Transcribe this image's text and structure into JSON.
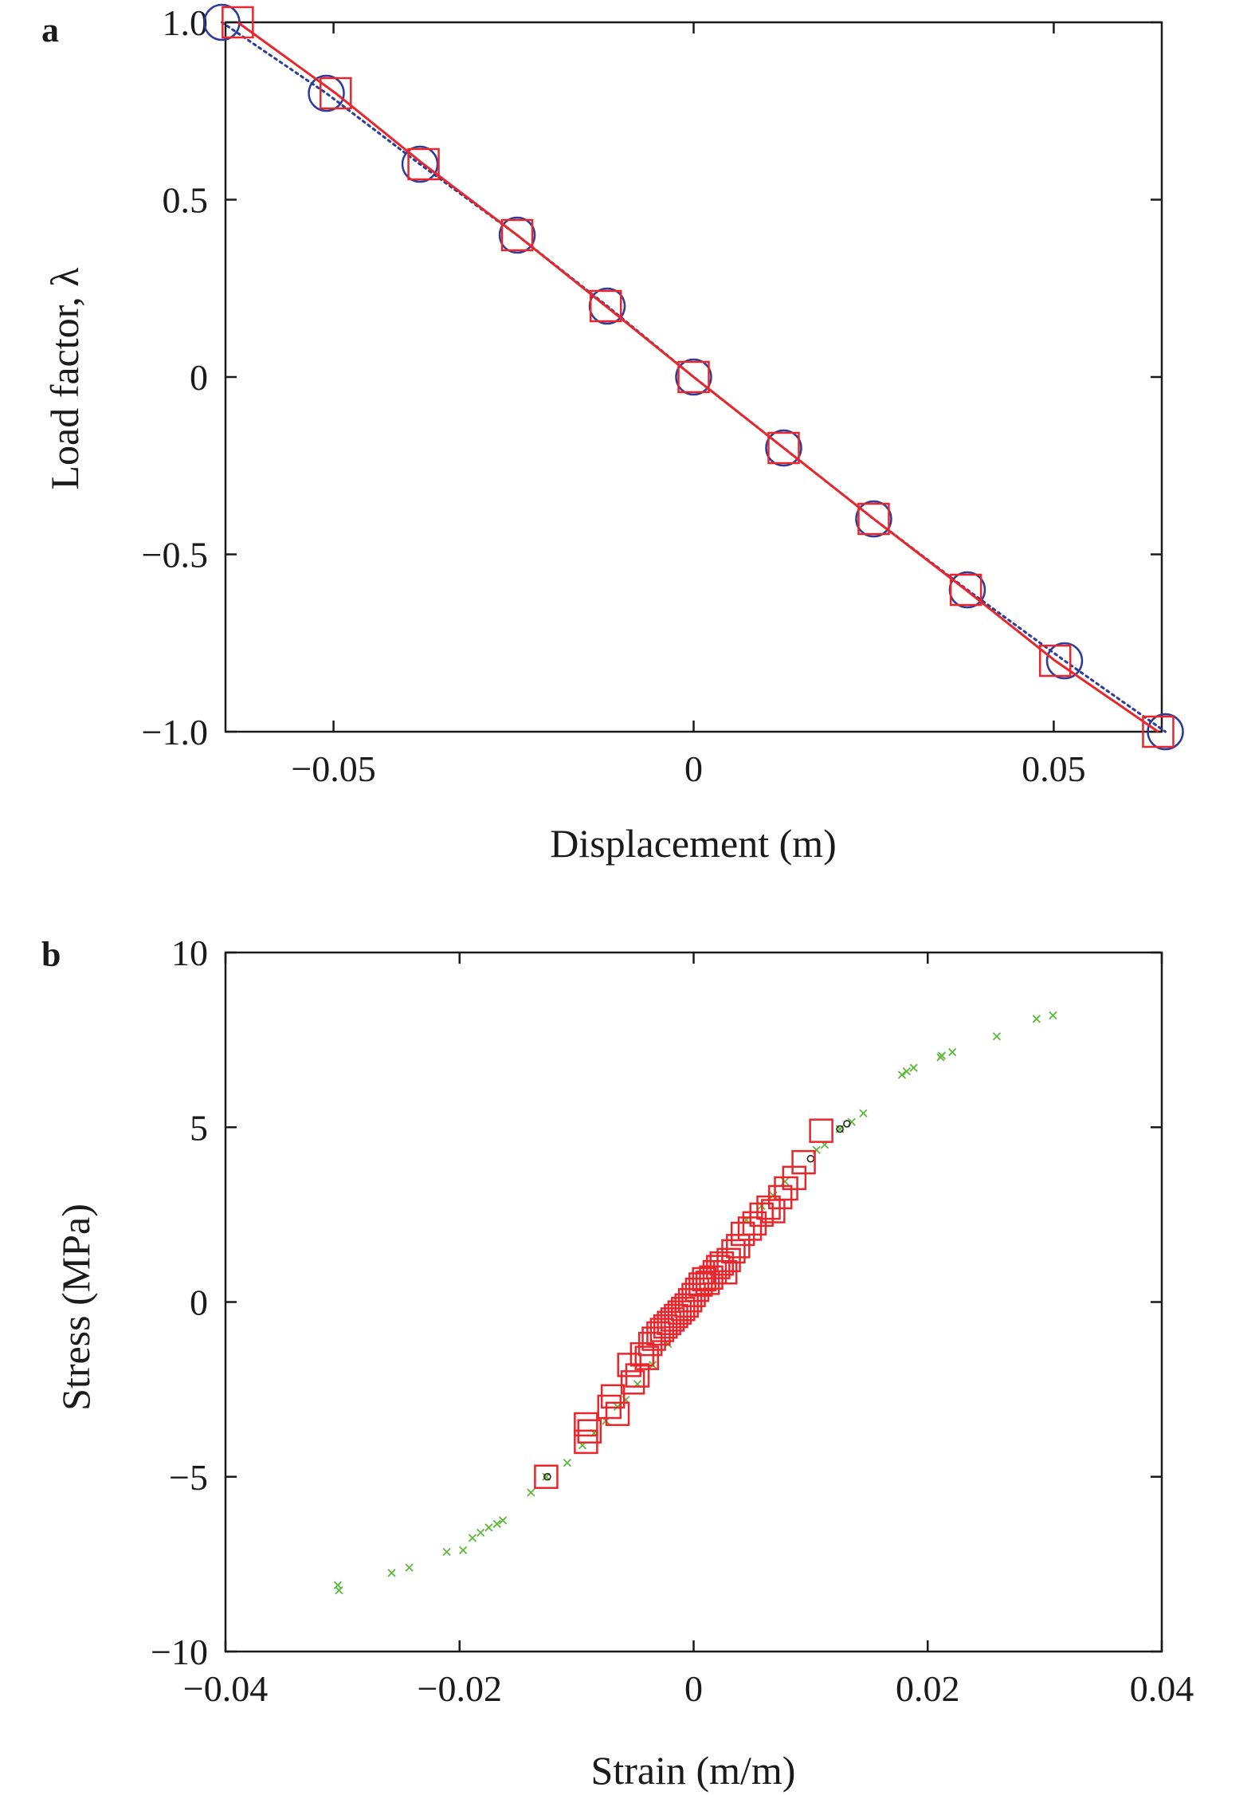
{
  "chart_data": [
    {
      "type": "line",
      "panel_label": "a",
      "xlabel": "Displacement (m)",
      "ylabel": "Load factor, λ",
      "xlim": [
        -0.065,
        0.065
      ],
      "ylim": [
        -1.0,
        1.0
      ],
      "xticks": [
        -0.05,
        0,
        0.05
      ],
      "xtick_labels": [
        "−0.05",
        "0",
        "0.05"
      ],
      "yticks": [
        -1.0,
        -0.5,
        0,
        0.5,
        1.0
      ],
      "ytick_labels": [
        "−1.0",
        "−0.5",
        "0",
        "0.5",
        "1.0"
      ],
      "grid": false,
      "series": [
        {
          "marker": "circle",
          "line": "dotted",
          "color": "#2b3d9a",
          "x": [
            -0.0655,
            -0.051,
            -0.038,
            -0.0245,
            -0.012,
            0.0,
            0.0125,
            0.025,
            0.038,
            0.0515,
            0.0655
          ],
          "y": [
            1.0,
            0.8,
            0.6,
            0.4,
            0.2,
            0.0,
            -0.2,
            -0.4,
            -0.6,
            -0.8,
            -1.0
          ]
        },
        {
          "marker": "square",
          "line": "solid",
          "color": "#e8262b",
          "x": [
            -0.0633,
            -0.0497,
            -0.0375,
            -0.0245,
            -0.0122,
            0.0,
            0.0125,
            0.025,
            0.0378,
            0.0502,
            0.0645
          ],
          "y": [
            1.0,
            0.8,
            0.6,
            0.4,
            0.2,
            0.0,
            -0.2,
            -0.4,
            -0.6,
            -0.8,
            -1.0
          ]
        }
      ]
    },
    {
      "type": "scatter",
      "panel_label": "b",
      "xlabel": "Strain (m/m)",
      "ylabel": "Stress (MPa)",
      "xlim": [
        -0.04,
        0.04
      ],
      "ylim": [
        -10,
        10
      ],
      "xticks": [
        -0.04,
        -0.02,
        0,
        0.02,
        0.04
      ],
      "xtick_labels": [
        "−0.04",
        "−0.02",
        "0",
        "0.02",
        "0.04"
      ],
      "yticks": [
        -10,
        -5,
        0,
        5,
        10
      ],
      "ytick_labels": [
        "−10",
        "−5",
        "0",
        "5",
        "10"
      ],
      "grid": false,
      "series": [
        {
          "marker": "x",
          "color": "#5db83a",
          "x": [
            -0.0304,
            -0.0303,
            -0.0258,
            -0.0243,
            -0.0211,
            -0.0197,
            -0.0189,
            -0.0182,
            -0.0175,
            -0.0168,
            -0.0163,
            -0.0139,
            -0.0126,
            -0.0108,
            -0.0095,
            -0.0085,
            -0.0075,
            -0.0065,
            -0.0058,
            -0.0048,
            -0.0035,
            -0.0022,
            0.0045,
            0.0058,
            0.0068,
            0.0078,
            0.0105,
            0.0112,
            0.0125,
            0.0135,
            0.0145,
            0.0178,
            0.0182,
            0.0188,
            0.0211,
            0.0212,
            0.0221,
            0.0259,
            0.0293,
            0.0307
          ],
          "y": [
            -8.1,
            -8.25,
            -7.75,
            -7.6,
            -7.15,
            -7.1,
            -6.75,
            -6.6,
            -6.45,
            -6.35,
            -6.25,
            -5.45,
            -5.0,
            -4.6,
            -4.1,
            -3.75,
            -3.4,
            -3.0,
            -2.8,
            -2.35,
            -1.8,
            -1.2,
            2.35,
            2.75,
            3.05,
            3.45,
            4.35,
            4.5,
            4.95,
            5.15,
            5.4,
            6.5,
            6.6,
            6.7,
            7.0,
            7.05,
            7.15,
            7.6,
            8.1,
            8.2
          ]
        },
        {
          "marker": "circle-small",
          "color": "#1a1a1a",
          "x": [
            -0.0125,
            0.01,
            0.0125,
            0.0131
          ],
          "y": [
            -5.0,
            4.1,
            4.95,
            5.1
          ]
        },
        {
          "marker": "square",
          "color": "#e8262b",
          "x": [
            -0.0126,
            -0.0092,
            -0.0092,
            -0.0089,
            -0.0072,
            -0.0069,
            -0.0065,
            -0.0055,
            -0.0052,
            -0.0048,
            -0.0044,
            -0.004,
            -0.0037,
            -0.0034,
            -0.003,
            -0.0027,
            -0.0024,
            -0.0021,
            -0.0018,
            -0.0015,
            -0.0012,
            -0.0009,
            -0.0006,
            -0.0003,
            0.0,
            0.0003,
            0.0006,
            0.0009,
            0.0012,
            0.0015,
            0.0018,
            0.0021,
            0.0024,
            0.0027,
            0.003,
            0.0034,
            0.0038,
            0.0042,
            0.0048,
            0.0052,
            0.0058,
            0.0064,
            0.0068,
            0.0074,
            0.0079,
            0.0086,
            0.0094,
            0.0109
          ],
          "y": [
            -5.0,
            -4.0,
            -3.5,
            -3.7,
            -3.0,
            -2.7,
            -3.2,
            -1.8,
            -2.3,
            -2.1,
            -1.5,
            -1.6,
            -1.2,
            -1.05,
            -0.9,
            -0.8,
            -0.7,
            -0.6,
            -0.5,
            -0.4,
            -0.3,
            -0.2,
            -0.1,
            0.05,
            0.2,
            0.35,
            0.5,
            0.65,
            0.55,
            0.7,
            0.85,
            1.0,
            1.1,
            0.85,
            1.2,
            1.45,
            1.6,
            1.95,
            2.1,
            2.25,
            2.5,
            2.7,
            2.6,
            3.0,
            3.25,
            3.55,
            4.0,
            4.9
          ]
        }
      ]
    }
  ]
}
